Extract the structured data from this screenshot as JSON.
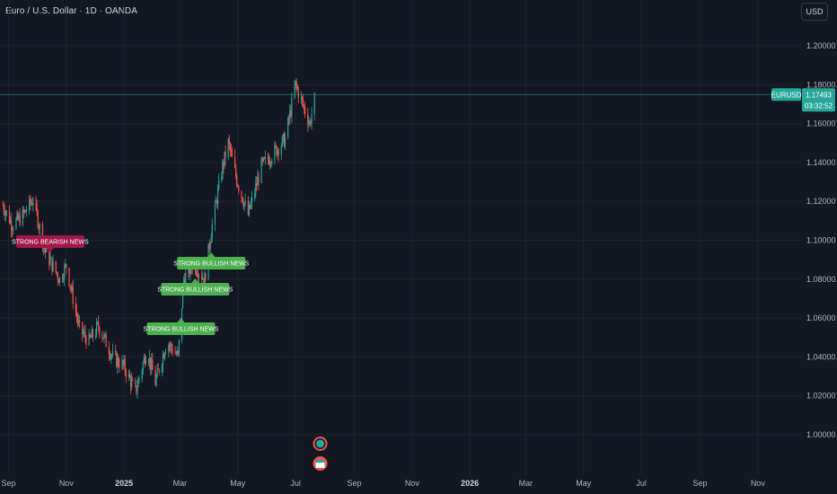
{
  "header": {
    "title": "Euro / U.S. Dollar · 1D · OANDA",
    "currency_button": "USD"
  },
  "price_tag": {
    "symbol": "EURUSD",
    "price": "1.17493",
    "countdown": "03:32:52"
  },
  "colors": {
    "background": "#131722",
    "grid": "#1e222d",
    "up": "#26a69a",
    "down": "#ef5350",
    "bullish": "#4caf50",
    "bearish": "#a0174a",
    "price_line": "#26a69a"
  },
  "chart_data": {
    "type": "candlestick",
    "symbol": "EURUSD",
    "timeframe": "1D",
    "y_ticks": [
      1.0,
      1.02,
      1.04,
      1.06,
      1.08,
      1.1,
      1.12,
      1.14,
      1.16,
      1.18,
      1.2
    ],
    "y_tick_labels": [
      "1.00000",
      "1.02000",
      "1.04000",
      "1.06000",
      "1.08000",
      "1.10000",
      "1.12000",
      "1.14000",
      "1.16000",
      "1.18000",
      "1.20000"
    ],
    "ylim": [
      0.975,
      1.215
    ],
    "x_ticks": [
      {
        "label": "Sep",
        "bold": false
      },
      {
        "label": "Nov",
        "bold": false
      },
      {
        "label": "2025",
        "bold": true
      },
      {
        "label": "Mar",
        "bold": false
      },
      {
        "label": "May",
        "bold": false
      },
      {
        "label": "Jul",
        "bold": false
      },
      {
        "label": "Sep",
        "bold": false
      },
      {
        "label": "Nov",
        "bold": false
      },
      {
        "label": "2026",
        "bold": true
      },
      {
        "label": "Mar",
        "bold": false
      },
      {
        "label": "May",
        "bold": false
      },
      {
        "label": "Jul",
        "bold": false
      },
      {
        "label": "Sep",
        "bold": false
      },
      {
        "label": "Nov",
        "bold": false
      }
    ],
    "path": [
      [
        "2024-08-26",
        1.118
      ],
      [
        "2024-09-05",
        1.108
      ],
      [
        "2024-09-15",
        1.112
      ],
      [
        "2024-09-27",
        1.121
      ],
      [
        "2024-10-10",
        1.094
      ],
      [
        "2024-10-25",
        1.08
      ],
      [
        "2024-11-01",
        1.087
      ],
      [
        "2024-11-15",
        1.054
      ],
      [
        "2024-11-25",
        1.048
      ],
      [
        "2024-12-05",
        1.056
      ],
      [
        "2024-12-20",
        1.04
      ],
      [
        "2025-01-01",
        1.035
      ],
      [
        "2025-01-13",
        1.022
      ],
      [
        "2025-01-25",
        1.044
      ],
      [
        "2025-02-03",
        1.027
      ],
      [
        "2025-02-15",
        1.048
      ],
      [
        "2025-02-27",
        1.04
      ],
      [
        "2025-03-05",
        1.08
      ],
      [
        "2025-03-15",
        1.088
      ],
      [
        "2025-03-27",
        1.08
      ],
      [
        "2025-04-03",
        1.105
      ],
      [
        "2025-04-15",
        1.138
      ],
      [
        "2025-04-21",
        1.15
      ],
      [
        "2025-04-30",
        1.131
      ],
      [
        "2025-05-12",
        1.113
      ],
      [
        "2025-05-26",
        1.138
      ],
      [
        "2025-06-06",
        1.144
      ],
      [
        "2025-06-20",
        1.152
      ],
      [
        "2025-07-01",
        1.18
      ],
      [
        "2025-07-07",
        1.172
      ],
      [
        "2025-07-16",
        1.16
      ],
      [
        "2025-07-22",
        1.175
      ]
    ],
    "annotations": [
      {
        "text": "STRONG BEARISH NEWS",
        "date": "2024-10-15",
        "sentiment": "bearish"
      },
      {
        "text": "STRONG BULLISH NEWS",
        "date": "2025-03-02",
        "sentiment": "bullish"
      },
      {
        "text": "STRONG BULLISH NEWS",
        "date": "2025-03-17",
        "sentiment": "bullish"
      },
      {
        "text": "STRONG BULLISH NEWS",
        "date": "2025-04-03",
        "sentiment": "bullish"
      }
    ],
    "event_markers": [
      {
        "date": "2025-07-27",
        "kind": "up"
      },
      {
        "date": "2025-07-27",
        "kind": "flag"
      }
    ],
    "last_price": 1.17493
  }
}
